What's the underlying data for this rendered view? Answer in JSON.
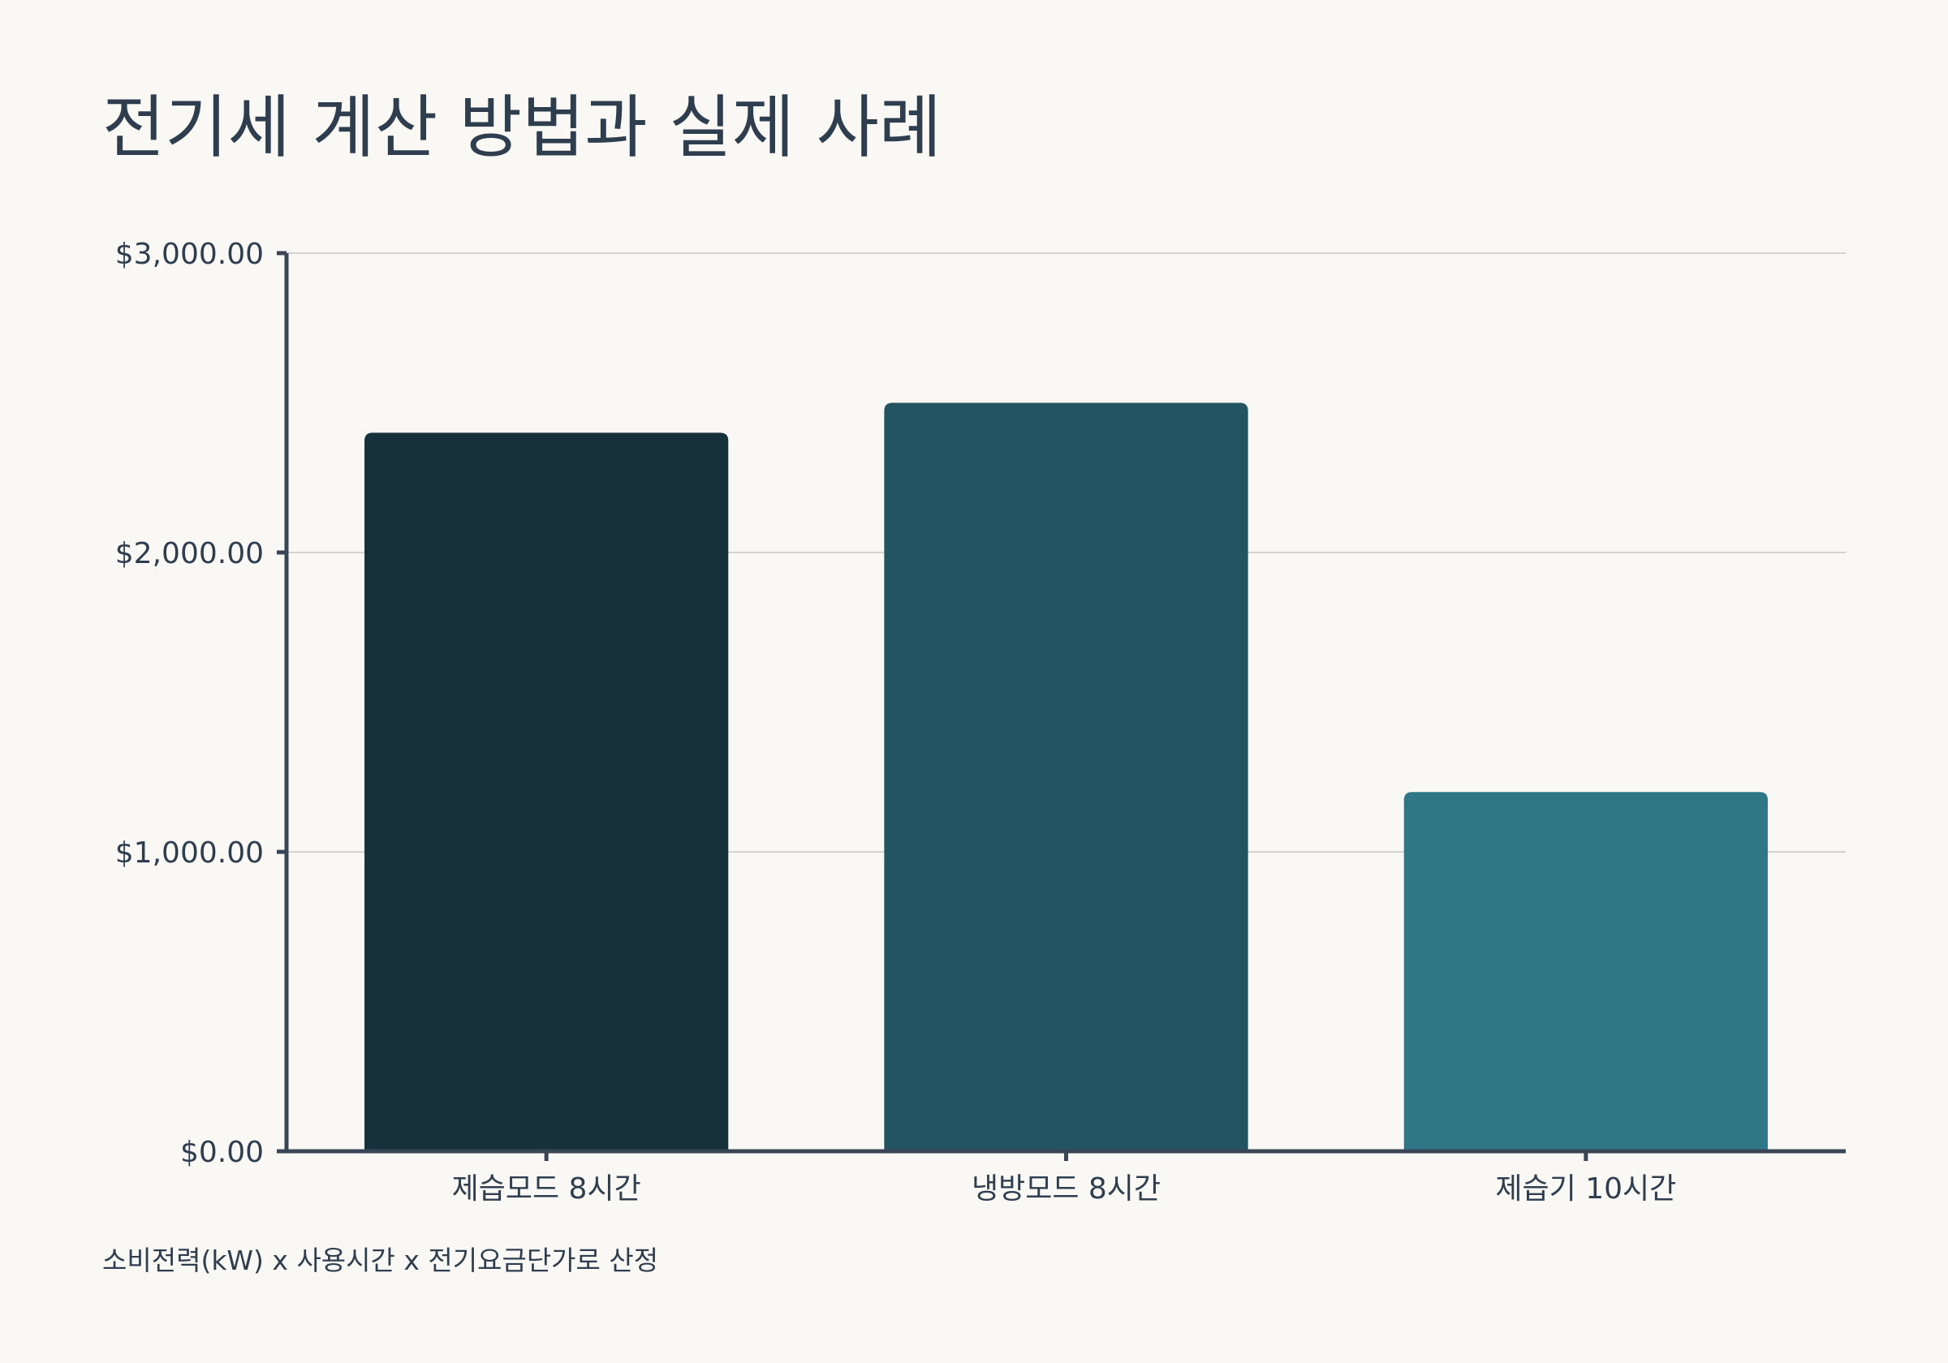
{
  "chart_data": {
    "type": "bar",
    "title": "전기세 계산 방법과 실제 사례",
    "categories": [
      "제습모드 8시간",
      "냉방모드 8시간",
      "제습기 10시간"
    ],
    "values": [
      2400,
      2500,
      1200
    ],
    "colors": [
      "#16313a",
      "#235462",
      "#2f7686"
    ],
    "ylim": [
      0,
      3000
    ],
    "yticks": [
      0,
      1000,
      2000,
      3000
    ],
    "ytick_labels": [
      "$0.00",
      "$1,000.00",
      "$2,000.00",
      "$3,000.00"
    ],
    "grid": true,
    "legend": "none",
    "footnote": "소비전력(kW) x 사용시간 x 전기요금단가로 산정"
  }
}
